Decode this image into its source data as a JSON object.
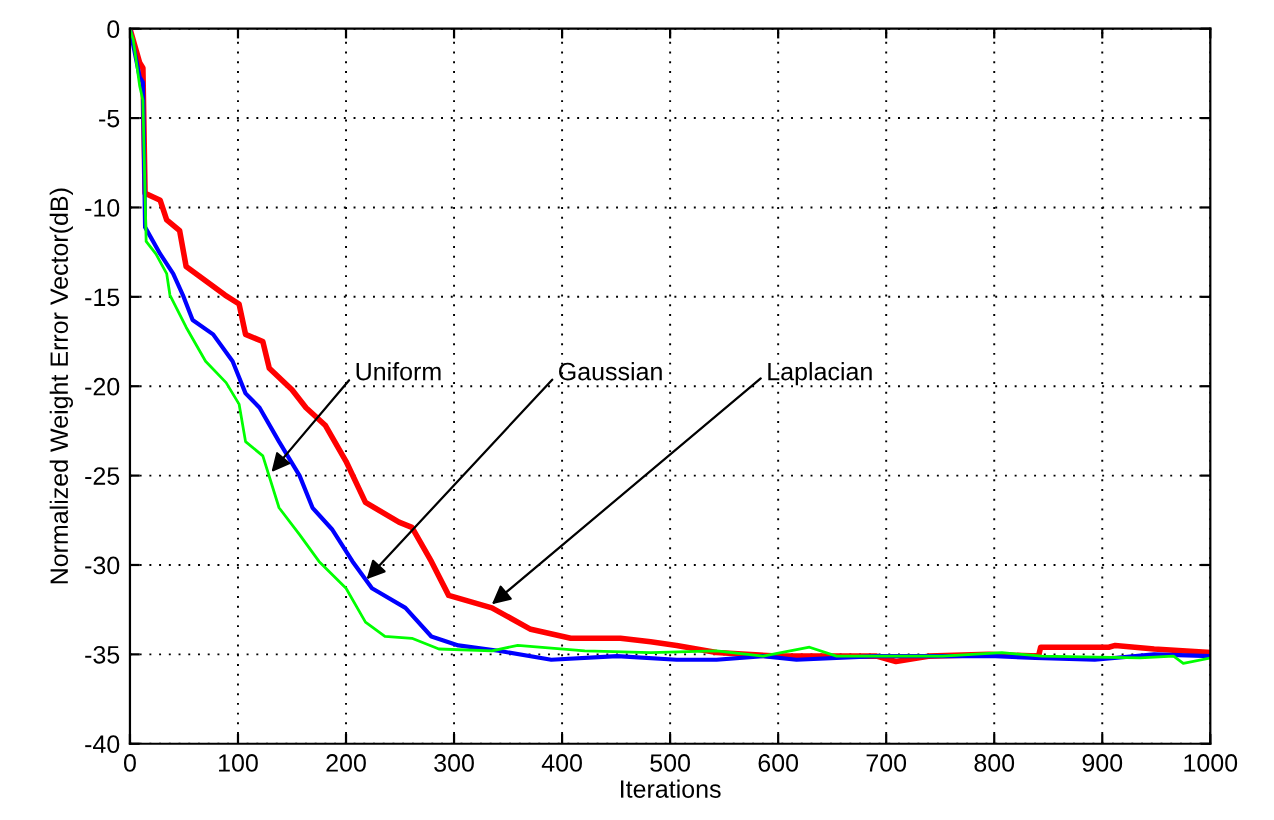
{
  "chart_data": {
    "type": "line",
    "xlabel": "Iterations",
    "ylabel": "Normalized Weight Error Vector(dB)",
    "xlim": [
      0,
      1000
    ],
    "xticks": [
      0,
      100,
      200,
      300,
      400,
      500,
      600,
      700,
      800,
      900,
      1000
    ],
    "ylim": [
      -40,
      0
    ],
    "yticks": [
      -40,
      -35,
      -30,
      -25,
      -20,
      -15,
      -10,
      -5,
      0
    ],
    "grid": true,
    "line_style": "solid",
    "marker": "none",
    "series": [
      {
        "color": "#ff0000",
        "x": [
          0,
          9,
          12,
          14,
          28,
          34,
          46,
          52,
          70,
          88,
          101,
          107,
          123,
          129,
          150,
          163,
          181,
          200,
          218,
          249,
          261,
          279,
          295,
          335,
          371,
          408,
          454,
          482,
          506,
          543,
          599,
          691,
          709,
          739,
          795,
          841,
          843,
          906,
          912,
          948,
          1000
        ],
        "values": [
          0,
          -1.9,
          -2.2,
          -9.2,
          -9.6,
          -10.7,
          -11.3,
          -13.3,
          -14.1,
          -14.9,
          -15.4,
          -17.1,
          -17.5,
          -19,
          -20.2,
          -21.2,
          -22.2,
          -24.2,
          -26.5,
          -27.6,
          -27.9,
          -29.8,
          -31.7,
          -32.4,
          -33.6,
          -34.1,
          -34.1,
          -34.3,
          -34.5,
          -34.9,
          -35.1,
          -35.1,
          -35.4,
          -35.1,
          -35,
          -35.1,
          -34.6,
          -34.6,
          -34.5,
          -34.7,
          -34.9
        ]
      },
      {
        "color": "#0000ff",
        "x": [
          0,
          9,
          12,
          14,
          28,
          40,
          49,
          58,
          77,
          95,
          107,
          120,
          138,
          157,
          169,
          187,
          206,
          224,
          255,
          279,
          304,
          341,
          390,
          451,
          506,
          543,
          586,
          617,
          691,
          801,
          838,
          893,
          948,
          1000
        ],
        "values": [
          0,
          -2.7,
          -3,
          -11.1,
          -12.6,
          -13.7,
          -14.9,
          -16.3,
          -17.1,
          -18.6,
          -20.4,
          -21.2,
          -23.1,
          -25,
          -26.8,
          -28,
          -29.8,
          -31.3,
          -32.4,
          -34,
          -34.5,
          -34.8,
          -35.3,
          -35.1,
          -35.3,
          -35.3,
          -35.1,
          -35.3,
          -35.1,
          -35.1,
          -35.2,
          -35.3,
          -35,
          -35.1
        ]
      },
      {
        "color": "#00ff00",
        "x": [
          0,
          3,
          9,
          12,
          15,
          24,
          34,
          37,
          52,
          70,
          89,
          101,
          107,
          123,
          138,
          157,
          175,
          200,
          218,
          236,
          261,
          286,
          335,
          359,
          421,
          482,
          543,
          586,
          629,
          654,
          752,
          807,
          844,
          935,
          966,
          975,
          1000
        ],
        "values": [
          0,
          -0.6,
          -3.2,
          -4,
          -11.9,
          -12.6,
          -13.7,
          -14.9,
          -16.7,
          -18.6,
          -19.8,
          -21,
          -23.1,
          -23.9,
          -26.8,
          -28.3,
          -29.8,
          -31.3,
          -33.2,
          -34,
          -34.1,
          -34.7,
          -34.8,
          -34.5,
          -34.8,
          -34.9,
          -34.8,
          -35.1,
          -34.6,
          -35.1,
          -35.1,
          -34.9,
          -35.1,
          -35.2,
          -35.1,
          -35.5,
          -35.2
        ]
      }
    ],
    "annotations": [
      {
        "text": "Uniform",
        "x": 131,
        "y": -24.8
      },
      {
        "text": "Gaussian",
        "x": 219,
        "y": -30.8
      },
      {
        "text": "Laplacian",
        "x": 335,
        "y": -32.2
      }
    ]
  }
}
